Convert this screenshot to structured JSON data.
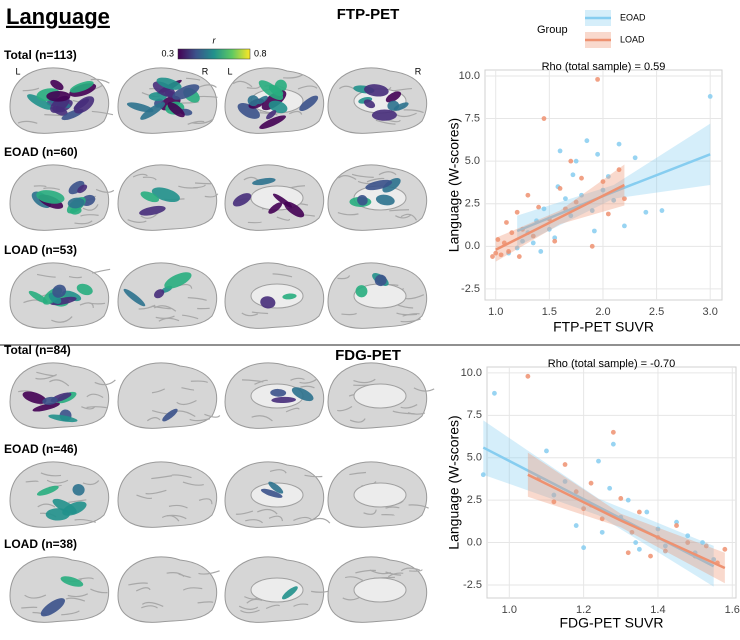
{
  "figure": {
    "title": "Language",
    "sections": [
      {
        "title": "FTP-PET",
        "rows": [
          "Total (n=113)",
          "EOAD (n=60)",
          "LOAD (n=53)"
        ]
      },
      {
        "title": "FDG-PET",
        "rows": [
          "Total (n=84)",
          "EOAD (n=46)",
          "LOAD (n=38)"
        ]
      }
    ],
    "hemispheres": [
      "L",
      "R",
      "L",
      "R"
    ],
    "colorbar": {
      "label": "r",
      "lim": [
        0.3,
        0.8
      ],
      "ticks": [
        0.3,
        0.8
      ]
    }
  },
  "chart_data": [
    {
      "type": "scatter",
      "title": "Rho (total sample) = 0.59",
      "x_label": "FTP-PET SUVR",
      "y_label": "Language (W-scores)",
      "legend_title": "Group",
      "grid": true,
      "xlim": [
        0.9,
        3.11
      ],
      "ylim": [
        -3.15,
        10.35
      ],
      "xticks": [
        {
          "value": 1,
          "label": "1.0"
        },
        1.5,
        {
          "value": 2,
          "label": "2.0"
        },
        2.5,
        {
          "value": 3,
          "label": "3.0"
        }
      ],
      "yticks": [
        -2.5,
        {
          "value": 0,
          "label": "0.0"
        },
        2.5,
        {
          "value": 5,
          "label": "5.0"
        },
        7.5,
        {
          "value": 10,
          "label": "10.0"
        }
      ],
      "series": [
        {
          "name": "EOAD",
          "color": "#86cdf0",
          "x": [
            1.12,
            1.2,
            1.25,
            1.3,
            1.35,
            1.38,
            1.42,
            1.45,
            1.5,
            1.55,
            1.58,
            1.6,
            1.65,
            1.7,
            1.72,
            1.75,
            1.8,
            1.85,
            1.9,
            1.92,
            1.95,
            2.0,
            2.05,
            2.1,
            2.15,
            2.2,
            2.3,
            2.4,
            2.55,
            3.0
          ],
          "values": [
            -0.4,
            -0.1,
            0.3,
            0.8,
            0.2,
            1.5,
            -0.3,
            2.2,
            1.0,
            0.5,
            3.5,
            5.6,
            2.8,
            1.8,
            4.2,
            5.0,
            3.0,
            6.2,
            2.1,
            0.9,
            5.4,
            3.3,
            4.1,
            2.7,
            6.0,
            1.2,
            5.2,
            2.0,
            2.1,
            8.8
          ],
          "fit": {
            "x": [
              1.2,
              2.1,
              3.0
            ],
            "values": [
              0.9,
              3.2,
              5.4
            ],
            "lower": [
              0.0,
              2.8,
              3.6
            ],
            "upper": [
              1.8,
              3.6,
              7.2
            ]
          }
        },
        {
          "name": "LOAD",
          "color": "#ee9170",
          "x": [
            0.97,
            1.0,
            1.02,
            1.05,
            1.08,
            1.1,
            1.12,
            1.15,
            1.2,
            1.22,
            1.25,
            1.3,
            1.35,
            1.4,
            1.45,
            1.5,
            1.55,
            1.6,
            1.65,
            1.7,
            1.75,
            1.8,
            1.9,
            1.95,
            2.0,
            2.05,
            2.15,
            2.2
          ],
          "values": [
            -0.6,
            -0.4,
            0.4,
            -0.5,
            0.2,
            1.4,
            -0.3,
            0.8,
            2.0,
            -0.6,
            1.0,
            3.0,
            0.6,
            2.3,
            7.5,
            1.6,
            0.3,
            3.4,
            2.2,
            5.0,
            2.6,
            4.0,
            0.0,
            9.8,
            3.8,
            1.9,
            4.5,
            2.8
          ],
          "fit": {
            "x": [
              1.0,
              1.6,
              2.2
            ],
            "values": [
              -0.2,
              1.7,
              3.6
            ],
            "lower": [
              -0.9,
              1.3,
              2.4
            ],
            "upper": [
              0.5,
              2.1,
              4.8
            ]
          }
        }
      ]
    },
    {
      "type": "scatter",
      "title": "Rho (total sample) = -0.70",
      "x_label": "FDG-PET SUVR",
      "y_label": "Language (W-scores)",
      "grid": true,
      "xlim": [
        0.94,
        1.61
      ],
      "ylim": [
        -3.27,
        10.35
      ],
      "xticks": [
        {
          "value": 1,
          "label": "1.0"
        },
        1.2,
        1.4,
        1.6
      ],
      "yticks": [
        -2.5,
        {
          "value": 0,
          "label": "0.0"
        },
        2.5,
        {
          "value": 5,
          "label": "5.0"
        },
        7.5,
        {
          "value": 10,
          "label": "10.0"
        }
      ],
      "series": [
        {
          "name": "EOAD",
          "color": "#86cdf0",
          "x": [
            0.93,
            0.96,
            1.1,
            1.12,
            1.15,
            1.18,
            1.2,
            1.22,
            1.24,
            1.25,
            1.27,
            1.28,
            1.3,
            1.32,
            1.34,
            1.35,
            1.37,
            1.4,
            1.42,
            1.45,
            1.48,
            1.5,
            1.52,
            1.55
          ],
          "values": [
            4.0,
            8.8,
            5.4,
            2.8,
            3.6,
            1.0,
            -0.3,
            2.2,
            4.8,
            0.6,
            3.2,
            5.8,
            1.5,
            2.5,
            0.0,
            -0.4,
            1.8,
            0.8,
            -0.2,
            1.2,
            0.4,
            -0.6,
            0.0,
            -1.0
          ],
          "fit": {
            "x": [
              0.93,
              1.24,
              1.55
            ],
            "values": [
              5.6,
              2.1,
              -1.4
            ],
            "lower": [
              4.0,
              1.6,
              -2.6
            ],
            "upper": [
              7.2,
              2.6,
              -0.2
            ]
          }
        },
        {
          "name": "LOAD",
          "color": "#ee9170",
          "x": [
            1.05,
            1.08,
            1.12,
            1.15,
            1.18,
            1.2,
            1.22,
            1.25,
            1.28,
            1.3,
            1.32,
            1.33,
            1.35,
            1.38,
            1.4,
            1.42,
            1.45,
            1.48,
            1.5,
            1.53,
            1.56,
            1.58
          ],
          "values": [
            9.8,
            3.8,
            2.4,
            4.6,
            3.0,
            2.0,
            3.5,
            1.4,
            6.5,
            2.6,
            -0.6,
            0.6,
            1.8,
            -0.8,
            0.3,
            -0.5,
            1.0,
            0.0,
            -0.8,
            -0.2,
            -1.2,
            -0.4
          ],
          "fit": {
            "x": [
              1.05,
              1.3,
              1.58
            ],
            "values": [
              4.0,
              1.3,
              -1.5
            ],
            "lower": [
              2.7,
              0.9,
              -2.4
            ],
            "upper": [
              5.3,
              1.7,
              -0.6
            ]
          }
        }
      ]
    }
  ]
}
